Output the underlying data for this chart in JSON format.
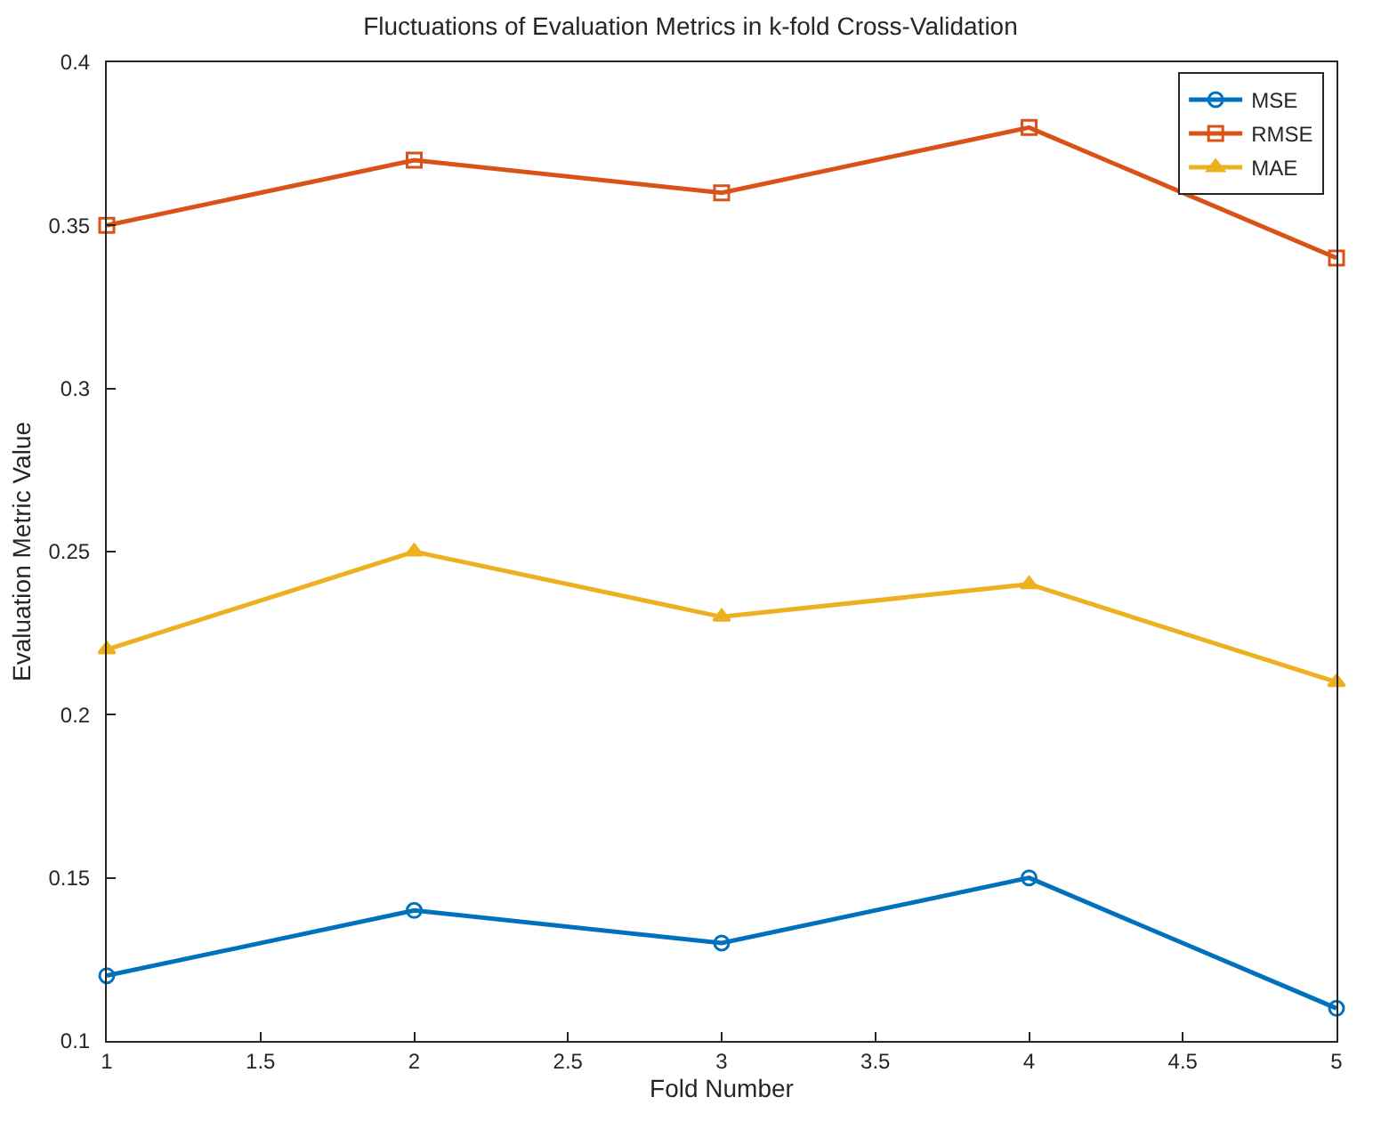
{
  "chart_data": {
    "type": "line",
    "title": "Fluctuations of Evaluation Metrics in k-fold Cross-Validation",
    "xlabel": "Fold Number",
    "ylabel": "Evaluation Metric Value",
    "x": [
      1,
      2,
      3,
      4,
      5
    ],
    "series": [
      {
        "name": "MSE",
        "color": "#0072bd",
        "marker": "circle",
        "values": [
          0.12,
          0.14,
          0.13,
          0.15,
          0.11
        ]
      },
      {
        "name": "RMSE",
        "color": "#d95319",
        "marker": "square",
        "values": [
          0.35,
          0.37,
          0.36,
          0.38,
          0.34
        ]
      },
      {
        "name": "MAE",
        "color": "#edb120",
        "marker": "triangle",
        "values": [
          0.22,
          0.25,
          0.23,
          0.24,
          0.21
        ]
      }
    ],
    "xlim": [
      1,
      5
    ],
    "xticks": [
      1,
      1.5,
      2,
      2.5,
      3,
      3.5,
      4,
      4.5,
      5
    ],
    "ylim": [
      0.1,
      0.4
    ],
    "yticks": [
      0.1,
      0.15,
      0.2,
      0.25,
      0.3,
      0.35,
      0.4
    ],
    "legend": "top right",
    "line_style": "solid"
  }
}
